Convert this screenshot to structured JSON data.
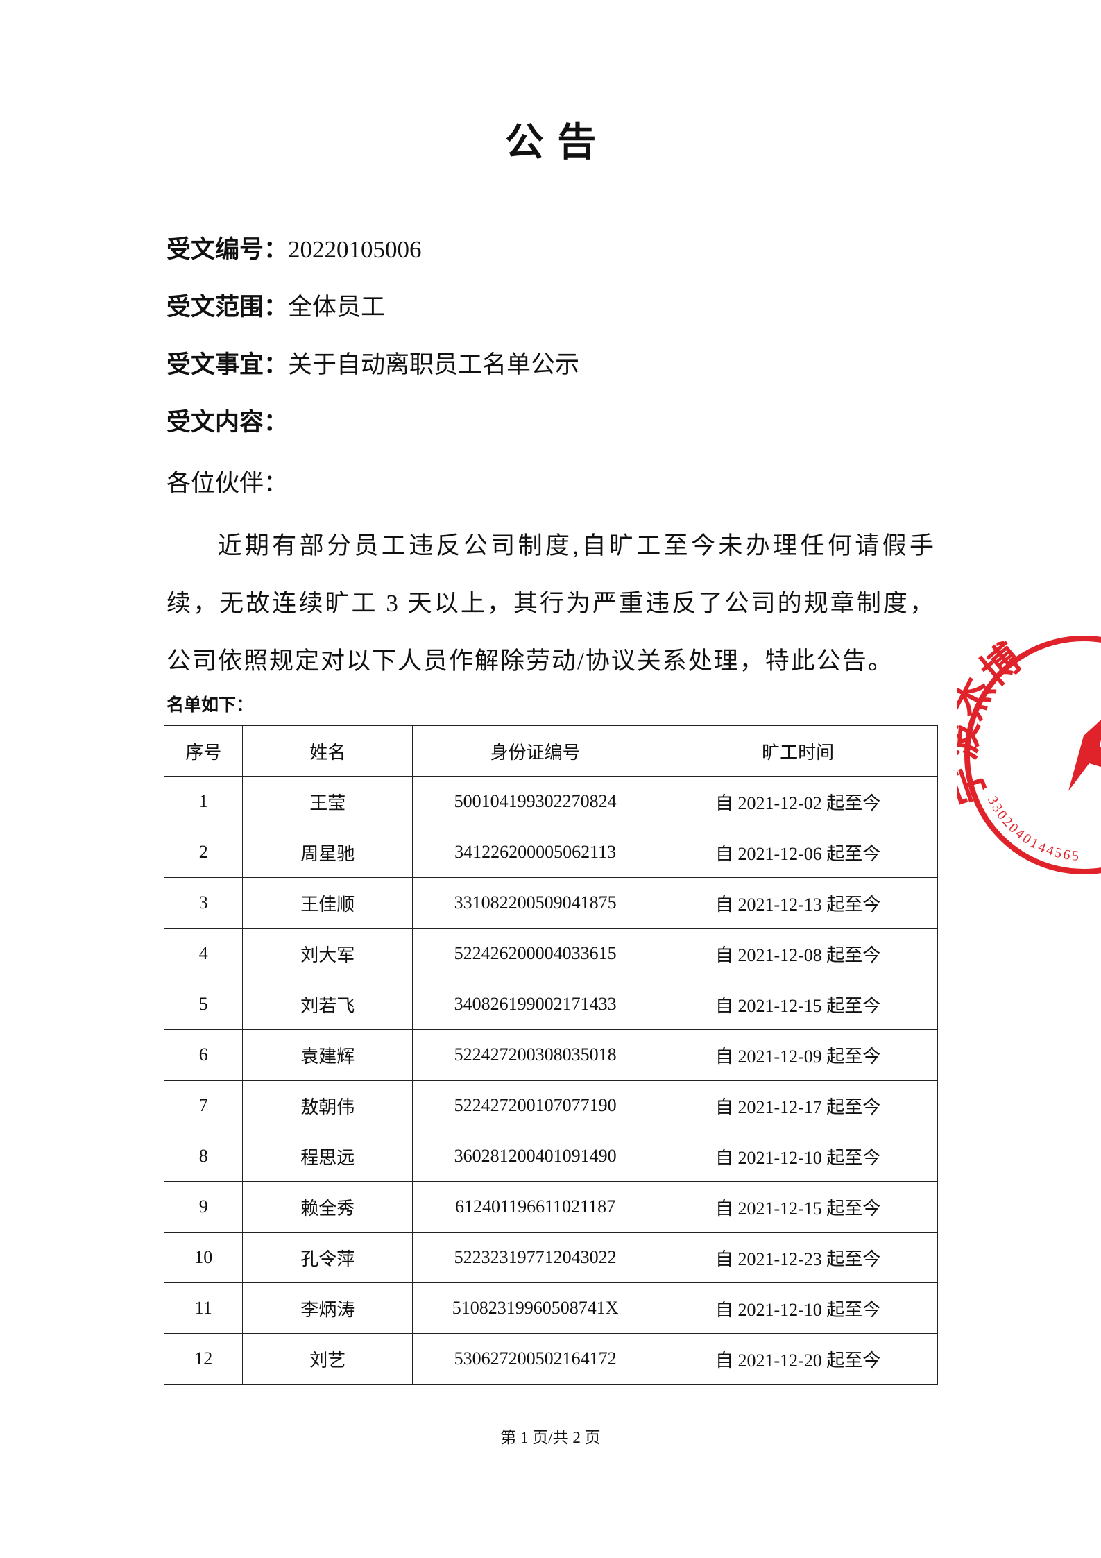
{
  "header": {
    "title": "公 告"
  },
  "fields": [
    {
      "label": "受文编号：",
      "value": "20220105006"
    },
    {
      "label": "受文范围：",
      "value": "全体员工"
    },
    {
      "label": "受文事宜：",
      "value": "关于自动离职员工名单公示"
    },
    {
      "label": "受文内容：",
      "value": null
    }
  ],
  "greeting": "各位伙伴：",
  "body": "近期有部分员工违反公司制度,自旷工至今未办理任何请假手续，无故连续旷工 3 天以上，其行为严重违反了公司的规章制度，公司依照规定对以下人员作解除劳动/协议关系处理，特此公告。",
  "list_label": "名单如下：",
  "table": {
    "headers": [
      "序号",
      "姓名",
      "身份证编号",
      "旷工时间"
    ],
    "rows": [
      [
        "1",
        "王莹",
        "500104199302270824",
        "自 2021-12-02 起至今"
      ],
      [
        "2",
        "周星驰",
        "341226200005062113",
        "自 2021-12-06 起至今"
      ],
      [
        "3",
        "王佳顺",
        "331082200509041875",
        "自 2021-12-13 起至今"
      ],
      [
        "4",
        "刘大军",
        "522426200004033615",
        "自 2021-12-08 起至今"
      ],
      [
        "5",
        "刘若飞",
        "340826199002171433",
        "自 2021-12-15 起至今"
      ],
      [
        "6",
        "袁建辉",
        "522427200308035018",
        "自 2021-12-09 起至今"
      ],
      [
        "7",
        "敖朝伟",
        "522427200107077190",
        "自 2021-12-17 起至今"
      ],
      [
        "8",
        "程思远",
        "360281200401091490",
        "自 2021-12-10 起至今"
      ],
      [
        "9",
        "赖全秀",
        "612401196611021187",
        "自 2021-12-15 起至今"
      ],
      [
        "10",
        "孔令萍",
        "522323197712043022",
        "自 2021-12-23 起至今"
      ],
      [
        "11",
        "李炳涛",
        "51082319960508741X",
        "自 2021-12-10 起至今"
      ],
      [
        "12",
        "刘艺",
        "530627200502164172",
        "自 2021-12-20 起至今"
      ]
    ]
  },
  "stamp": {
    "name": "宁波杰博",
    "code": "3302040144565"
  },
  "footer": "第 1 页/共 2 页"
}
